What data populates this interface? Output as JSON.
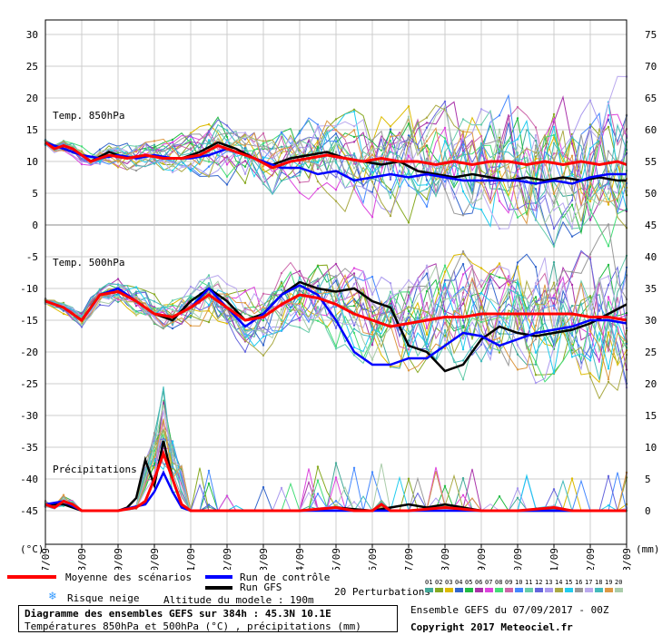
{
  "chart_data": {
    "type": "line",
    "dates": [
      "07/09",
      "08/09",
      "09/09",
      "10/09",
      "11/09",
      "12/09",
      "13/09",
      "14/09",
      "15/09",
      "16/09",
      "17/09",
      "18/09",
      "19/09",
      "20/09",
      "21/09",
      "22/09",
      "23/09"
    ],
    "left_axis": {
      "label": "(°C)",
      "ticks": [
        30,
        25,
        20,
        15,
        10,
        5,
        0,
        -5,
        -10,
        -15,
        -20,
        -25,
        -30,
        -35,
        -40,
        -45
      ],
      "range": [
        -45,
        30
      ]
    },
    "right_axis": {
      "label": "(mm)",
      "ticks": [
        75,
        70,
        65,
        60,
        55,
        50,
        45,
        40,
        35,
        30,
        25,
        20,
        15,
        10,
        5,
        0
      ],
      "range": [
        0,
        75
      ]
    },
    "panels": [
      {
        "name": "Temp. 850hPa",
        "mean": [
          [
            0,
            13
          ],
          [
            0.25,
            12
          ],
          [
            0.5,
            12.5
          ],
          [
            0.75,
            12
          ],
          [
            1.25,
            10
          ],
          [
            1.75,
            11
          ],
          [
            2.25,
            10.5
          ],
          [
            2.75,
            11
          ],
          [
            3.25,
            10.5
          ],
          [
            3.75,
            10.5
          ],
          [
            4.25,
            11
          ],
          [
            4.75,
            12.5
          ],
          [
            5.25,
            11.5
          ],
          [
            5.75,
            10.5
          ],
          [
            6.25,
            9
          ],
          [
            6.75,
            10
          ],
          [
            7.25,
            10.5
          ],
          [
            7.75,
            11
          ],
          [
            8.25,
            10.5
          ],
          [
            8.75,
            10
          ],
          [
            9.25,
            10.5
          ],
          [
            9.75,
            10
          ],
          [
            10.25,
            10
          ],
          [
            10.75,
            9.5
          ],
          [
            11.25,
            10
          ],
          [
            11.75,
            9.5
          ],
          [
            12.25,
            10
          ],
          [
            12.75,
            10
          ],
          [
            13.25,
            9.5
          ],
          [
            13.75,
            10
          ],
          [
            14.25,
            9.5
          ],
          [
            14.75,
            10
          ],
          [
            15.25,
            9.5
          ],
          [
            15.75,
            10
          ],
          [
            16,
            9.5
          ]
        ],
        "control": [
          [
            0,
            13
          ],
          [
            0.5,
            12
          ],
          [
            1,
            11
          ],
          [
            1.5,
            10.5
          ],
          [
            2,
            11
          ],
          [
            2.5,
            10.5
          ],
          [
            3,
            11
          ],
          [
            3.5,
            10.5
          ],
          [
            4,
            10.5
          ],
          [
            4.5,
            11
          ],
          [
            5,
            12
          ],
          [
            5.5,
            11
          ],
          [
            6,
            10
          ],
          [
            6.5,
            9
          ],
          [
            7,
            9
          ],
          [
            7.5,
            8
          ],
          [
            8,
            8.5
          ],
          [
            8.5,
            7
          ],
          [
            9,
            7.5
          ],
          [
            9.5,
            8
          ],
          [
            10,
            7.5
          ],
          [
            10.5,
            8
          ],
          [
            11,
            7.5
          ],
          [
            11.5,
            7
          ],
          [
            12,
            7
          ],
          [
            12.5,
            7
          ],
          [
            13,
            7
          ],
          [
            13.5,
            6.5
          ],
          [
            14,
            7
          ],
          [
            14.5,
            6.5
          ],
          [
            15,
            7.5
          ],
          [
            15.5,
            8
          ],
          [
            16,
            8
          ]
        ],
        "gfs": [
          [
            0,
            13
          ],
          [
            0.5,
            12
          ],
          [
            1,
            11
          ],
          [
            1.25,
            10
          ],
          [
            1.75,
            11.5
          ],
          [
            2.25,
            10.5
          ],
          [
            2.75,
            11
          ],
          [
            3.25,
            10.5
          ],
          [
            3.75,
            10.5
          ],
          [
            4.25,
            11.5
          ],
          [
            4.75,
            13
          ],
          [
            5.25,
            12
          ],
          [
            5.75,
            10.5
          ],
          [
            6.25,
            9.5
          ],
          [
            6.75,
            10.5
          ],
          [
            7.25,
            11
          ],
          [
            7.75,
            11.5
          ],
          [
            8.25,
            10.5
          ],
          [
            8.75,
            10
          ],
          [
            9.25,
            9.5
          ],
          [
            9.75,
            10
          ],
          [
            10.25,
            8.5
          ],
          [
            10.75,
            8
          ],
          [
            11.25,
            7.5
          ],
          [
            11.75,
            8
          ],
          [
            12.25,
            7.5
          ],
          [
            12.75,
            7
          ],
          [
            13.25,
            7.5
          ],
          [
            13.75,
            7
          ],
          [
            14.25,
            7.5
          ],
          [
            14.75,
            7
          ],
          [
            15.25,
            7.5
          ],
          [
            15.75,
            7
          ],
          [
            16,
            7
          ]
        ]
      },
      {
        "name": "Temp. 500hPa",
        "mean": [
          [
            0,
            -12
          ],
          [
            0.5,
            -13
          ],
          [
            1,
            -15
          ],
          [
            1.5,
            -11
          ],
          [
            2,
            -10.5
          ],
          [
            2.5,
            -12
          ],
          [
            3,
            -14
          ],
          [
            3.5,
            -14.5
          ],
          [
            4,
            -13
          ],
          [
            4.5,
            -11
          ],
          [
            5,
            -13
          ],
          [
            5.5,
            -15
          ],
          [
            6,
            -14.5
          ],
          [
            6.5,
            -12.5
          ],
          [
            7,
            -11
          ],
          [
            7.5,
            -11.5
          ],
          [
            8,
            -12.5
          ],
          [
            8.5,
            -14
          ],
          [
            9,
            -15
          ],
          [
            9.5,
            -16
          ],
          [
            10,
            -15.5
          ],
          [
            10.5,
            -15
          ],
          [
            11,
            -14.5
          ],
          [
            11.5,
            -14.5
          ],
          [
            12,
            -14
          ],
          [
            12.5,
            -14
          ],
          [
            13,
            -14
          ],
          [
            13.5,
            -14
          ],
          [
            14,
            -14
          ],
          [
            14.5,
            -14
          ],
          [
            15,
            -14.5
          ],
          [
            15.5,
            -14.5
          ],
          [
            16,
            -15
          ]
        ],
        "control": [
          [
            0,
            -12
          ],
          [
            0.5,
            -13
          ],
          [
            1,
            -15
          ],
          [
            1.5,
            -11
          ],
          [
            2,
            -10
          ],
          [
            2.5,
            -12
          ],
          [
            3,
            -14
          ],
          [
            3.5,
            -14.5
          ],
          [
            4,
            -13
          ],
          [
            4.5,
            -10
          ],
          [
            5,
            -13
          ],
          [
            5.5,
            -16
          ],
          [
            6,
            -14
          ],
          [
            6.5,
            -11
          ],
          [
            7,
            -9.5
          ],
          [
            7.5,
            -11
          ],
          [
            8,
            -15
          ],
          [
            8.5,
            -20
          ],
          [
            9,
            -22
          ],
          [
            9.5,
            -22
          ],
          [
            10,
            -21
          ],
          [
            10.5,
            -21
          ],
          [
            11,
            -19
          ],
          [
            11.5,
            -17
          ],
          [
            12,
            -17.5
          ],
          [
            12.5,
            -19
          ],
          [
            13,
            -18
          ],
          [
            13.5,
            -17
          ],
          [
            14,
            -16.5
          ],
          [
            14.5,
            -16
          ],
          [
            15,
            -15
          ],
          [
            15.5,
            -15
          ],
          [
            16,
            -15.5
          ]
        ],
        "gfs": [
          [
            0,
            -12
          ],
          [
            0.5,
            -13
          ],
          [
            1,
            -15
          ],
          [
            1.5,
            -11
          ],
          [
            2,
            -10
          ],
          [
            2.5,
            -12
          ],
          [
            3,
            -14
          ],
          [
            3.5,
            -15
          ],
          [
            4,
            -12
          ],
          [
            4.5,
            -10
          ],
          [
            5,
            -12
          ],
          [
            5.5,
            -15
          ],
          [
            6,
            -14
          ],
          [
            6.5,
            -11
          ],
          [
            7,
            -9
          ],
          [
            7.5,
            -10
          ],
          [
            8,
            -10.5
          ],
          [
            8.5,
            -10
          ],
          [
            9,
            -12
          ],
          [
            9.5,
            -13
          ],
          [
            10,
            -19
          ],
          [
            10.5,
            -20
          ],
          [
            11,
            -23
          ],
          [
            11.5,
            -22
          ],
          [
            12,
            -18
          ],
          [
            12.5,
            -16
          ],
          [
            13,
            -17
          ],
          [
            13.5,
            -17.5
          ],
          [
            14,
            -17
          ],
          [
            14.5,
            -16.5
          ],
          [
            15,
            -15.5
          ],
          [
            15.5,
            -14
          ],
          [
            16,
            -12.5
          ]
        ]
      },
      {
        "name": "Précipitations",
        "mean": [
          [
            0,
            1
          ],
          [
            0.25,
            0.5
          ],
          [
            0.5,
            1.5
          ],
          [
            0.75,
            1
          ],
          [
            1,
            0
          ],
          [
            1.5,
            0
          ],
          [
            2,
            0
          ],
          [
            2.5,
            0.5
          ],
          [
            2.75,
            1.5
          ],
          [
            3,
            5
          ],
          [
            3.25,
            9
          ],
          [
            3.5,
            5
          ],
          [
            3.75,
            1
          ],
          [
            4,
            0
          ],
          [
            5,
            0
          ],
          [
            6,
            0
          ],
          [
            7,
            0
          ],
          [
            8,
            0.5
          ],
          [
            8.5,
            0
          ],
          [
            9,
            0
          ],
          [
            9.25,
            1
          ],
          [
            9.5,
            0
          ],
          [
            10,
            0
          ],
          [
            11,
            0.5
          ],
          [
            12,
            0
          ],
          [
            13,
            0
          ],
          [
            14,
            0.5
          ],
          [
            14.5,
            0
          ],
          [
            15,
            0
          ],
          [
            16,
            0
          ]
        ],
        "control": [
          [
            0,
            1
          ],
          [
            0.5,
            1.5
          ],
          [
            1,
            0
          ],
          [
            2,
            0
          ],
          [
            2.75,
            1
          ],
          [
            3,
            3
          ],
          [
            3.25,
            6
          ],
          [
            3.5,
            3
          ],
          [
            3.75,
            0.5
          ],
          [
            4,
            0
          ],
          [
            5,
            0
          ],
          [
            6,
            0
          ],
          [
            7,
            0
          ],
          [
            8,
            0
          ],
          [
            9,
            0
          ],
          [
            10,
            0
          ],
          [
            11,
            0
          ],
          [
            12,
            0
          ],
          [
            13,
            0
          ],
          [
            14,
            0
          ],
          [
            15,
            0
          ],
          [
            16,
            0
          ]
        ],
        "gfs": [
          [
            0,
            1
          ],
          [
            0.5,
            1
          ],
          [
            1,
            0
          ],
          [
            2,
            0
          ],
          [
            2.25,
            0.5
          ],
          [
            2.5,
            2
          ],
          [
            2.75,
            8
          ],
          [
            3,
            4
          ],
          [
            3.25,
            11
          ],
          [
            3.5,
            5
          ],
          [
            3.75,
            1
          ],
          [
            4,
            0
          ],
          [
            5,
            0
          ],
          [
            6,
            0
          ],
          [
            7,
            0
          ],
          [
            8,
            0.5
          ],
          [
            9,
            0
          ],
          [
            9.5,
            0.5
          ],
          [
            10,
            1
          ],
          [
            10.5,
            0.5
          ],
          [
            11,
            1
          ],
          [
            11.5,
            0.5
          ],
          [
            12,
            0
          ],
          [
            13,
            0
          ],
          [
            14,
            0
          ],
          [
            15,
            0
          ],
          [
            16,
            0
          ]
        ]
      }
    ],
    "perturbations": {
      "count": 20,
      "colors": [
        "#44aa99",
        "#88aa22",
        "#ddbb00",
        "#3366cc",
        "#22bb44",
        "#aa33aa",
        "#dd44dd",
        "#44dd77",
        "#cc66aa",
        "#4488ff",
        "#66ccaa",
        "#6666dd",
        "#aa99ee",
        "#aaaa44",
        "#22ccee",
        "#999999",
        "#bbaaee",
        "#44bbbb",
        "#dd9944",
        "#aaccaa"
      ],
      "labels": [
        "01",
        "02",
        "03",
        "04",
        "05",
        "06",
        "07",
        "08",
        "09",
        "10",
        "11",
        "12",
        "13",
        "14",
        "15",
        "16",
        "17",
        "18",
        "19",
        "20"
      ]
    }
  },
  "legend": {
    "mean_label": "Moyenne des scénarios",
    "control_label": "Run de contrôle",
    "gfs_label": "Run GFS",
    "snow_label": "Risque neige",
    "altitude_label": "Altitude du modele : 190m",
    "perturbations_label": "20 Perturbations",
    "ensemble_label": "Ensemble GEFS du 07/09/2017 - 00Z",
    "copyright": "Copyright 2017 Meteociel.fr",
    "title": "Diagramme des ensembles GEFS sur 384h : 45.3N 10.1E",
    "subtitle": "Températures 850hPa et 500hPa (°C) , précipitations (mm)",
    "colors": {
      "mean": "#ff0000",
      "control": "#0000ff",
      "gfs": "#000000",
      "snow": "#3399ff"
    }
  }
}
